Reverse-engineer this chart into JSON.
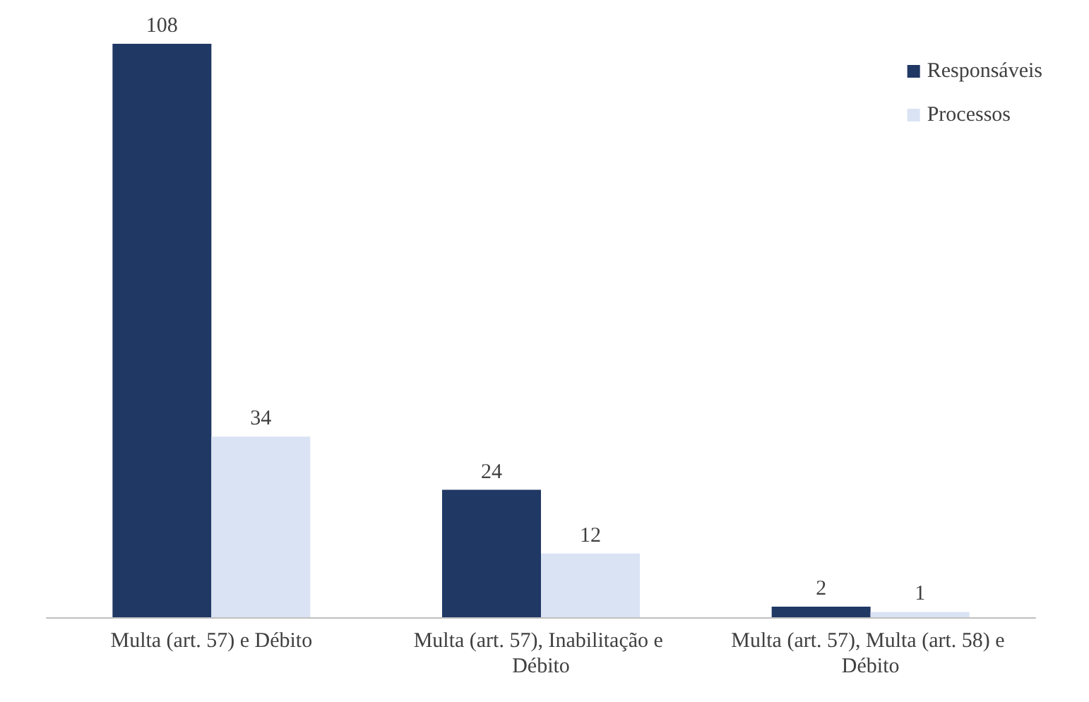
{
  "chart_data": {
    "type": "bar",
    "categories": [
      "Multa (art. 57) e Débito",
      "Multa (art. 57), Inabilitação e Débito",
      "Multa (art. 57), Multa (art. 58) e Débito"
    ],
    "series": [
      {
        "name": "Responsáveis",
        "color": "#203864",
        "values": [
          108,
          24,
          2
        ]
      },
      {
        "name": "Processos",
        "color": "#dae3f3",
        "values": [
          34,
          12,
          1
        ]
      }
    ],
    "data_labels": true,
    "legend": "top right"
  }
}
